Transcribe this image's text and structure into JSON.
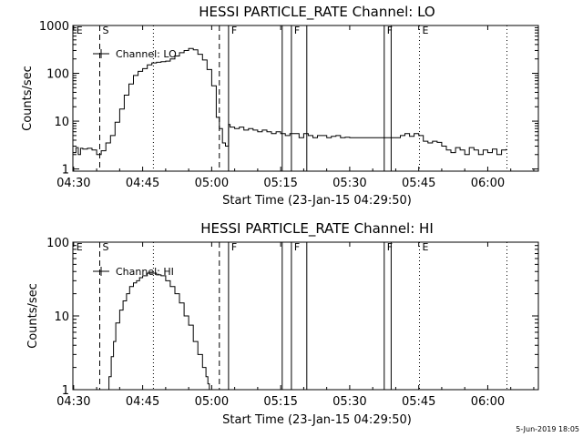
{
  "stamp": "5-Jun-2019 18:05",
  "chart_data": [
    {
      "type": "line",
      "title": "HESSI PARTICLE_RATE Channel: LO",
      "xlabel": "Start Time (23-Jan-15 04:29:50)",
      "ylabel": "Counts/sec",
      "yscale": "log",
      "xlim": [
        "04:29:50",
        "06:11:00"
      ],
      "ylim": [
        0.9,
        1000
      ],
      "xticks": [
        "04:30",
        "04:45",
        "05:00",
        "05:15",
        "05:30",
        "05:45",
        "06:00"
      ],
      "yticks": [
        "1",
        "10",
        "100",
        "1000"
      ],
      "grid": false,
      "legend": {
        "position": "top-left",
        "label": "Channel: LO"
      },
      "flags": [
        {
          "time": "04:30:00",
          "label": "E",
          "style": "none"
        },
        {
          "time": "04:35:40",
          "label": "S",
          "style": "dashed"
        },
        {
          "time": "05:03:40",
          "label": "F",
          "style": "solid"
        },
        {
          "time": "05:17:20",
          "label": "F",
          "style": "solid"
        },
        {
          "time": "05:37:30",
          "label": "F",
          "style": "solid"
        },
        {
          "time": "05:45:10",
          "label": "E",
          "style": "dotted"
        }
      ],
      "lines": [
        {
          "time": "04:35:40",
          "style": "dashed"
        },
        {
          "time": "04:47:20",
          "style": "dotted"
        },
        {
          "time": "05:01:40",
          "style": "dashed"
        },
        {
          "time": "05:03:40",
          "style": "solid"
        },
        {
          "time": "05:15:20",
          "style": "solid"
        },
        {
          "time": "05:17:20",
          "style": "solid"
        },
        {
          "time": "05:20:40",
          "style": "solid"
        },
        {
          "time": "05:37:30",
          "style": "solid"
        },
        {
          "time": "05:39:00",
          "style": "solid"
        },
        {
          "time": "05:45:10",
          "style": "dotted"
        },
        {
          "time": "06:04:10",
          "style": "dotted"
        }
      ],
      "series": [
        {
          "x": [
            "04:29:50",
            "04:30:30",
            "04:31:00",
            "04:31:30",
            "04:32:00",
            "04:33:00",
            "04:34:00",
            "04:35:00",
            "04:35:40",
            "04:36:00",
            "04:37:00",
            "04:38:00",
            "04:39:00",
            "04:40:00",
            "04:41:00",
            "04:42:00",
            "04:43:00",
            "04:44:00",
            "04:45:00",
            "04:46:00",
            "04:47:00",
            "04:48:00",
            "04:49:00",
            "04:50:00",
            "04:51:00",
            "04:52:00",
            "04:53:00",
            "04:54:00",
            "04:55:00",
            "04:56:00",
            "04:57:00",
            "04:58:00",
            "04:59:00",
            "05:00:00",
            "05:01:00",
            "05:01:40",
            "05:02:20",
            "05:03:00",
            "05:03:40",
            "05:04:00",
            "05:05:00",
            "05:06:00",
            "05:07:00",
            "05:08:00",
            "05:09:00",
            "05:10:00",
            "05:11:00",
            "05:12:00",
            "05:13:00",
            "05:14:00",
            "05:15:00",
            "05:16:00",
            "05:17:00",
            "05:18:00",
            "05:19:00",
            "05:20:00",
            "05:21:00",
            "05:22:00",
            "05:23:00",
            "05:24:00",
            "05:25:00",
            "05:26:00",
            "05:27:00",
            "05:28:00",
            "05:29:00",
            "05:30:00",
            "05:31:00",
            "05:32:00",
            "05:33:00",
            "05:34:00",
            "05:35:00",
            "05:36:00",
            "05:37:00",
            "05:38:00",
            "05:39:00",
            "05:40:00",
            "05:41:00",
            "05:42:00",
            "05:43:00",
            "05:44:00",
            "05:45:00",
            "05:46:00",
            "05:47:00",
            "05:48:00",
            "05:49:00",
            "05:50:00",
            "05:51:00",
            "05:52:00",
            "05:53:00",
            "05:54:00",
            "05:55:00",
            "05:56:00",
            "05:57:00",
            "05:58:00",
            "05:59:00",
            "06:00:00",
            "06:01:00",
            "06:02:00",
            "06:03:00",
            "06:04:00"
          ],
          "y": [
            2.2,
            2.8,
            2.0,
            2.7,
            2.6,
            2.7,
            2.5,
            2.0,
            2.0,
            2.4,
            3.5,
            5.0,
            9.5,
            18,
            35,
            60,
            90,
            110,
            125,
            150,
            165,
            170,
            175,
            180,
            200,
            230,
            270,
            300,
            330,
            310,
            250,
            190,
            120,
            55,
            12,
            7.0,
            3.5,
            3.0,
            8.5,
            7.5,
            7.0,
            7.5,
            6.5,
            7.0,
            6.5,
            6.0,
            6.5,
            6.0,
            5.5,
            6.0,
            5.5,
            5.0,
            5.5,
            5.5,
            4.5,
            5.5,
            5.0,
            4.5,
            5.0,
            5.0,
            4.5,
            4.8,
            5.0,
            4.5,
            4.6,
            4.5,
            4.5,
            4.5,
            4.5,
            4.5,
            4.5,
            4.5,
            4.5,
            4.5,
            4.5,
            4.5,
            5.0,
            5.5,
            4.8,
            5.5,
            5.0,
            3.8,
            3.5,
            3.8,
            3.6,
            3.0,
            2.5,
            2.2,
            2.8,
            2.5,
            2.0,
            2.8,
            2.5,
            2.0,
            2.5,
            2.2,
            2.6,
            2.0,
            2.5,
            2.6
          ]
        }
      ]
    },
    {
      "type": "line",
      "title": "HESSI PARTICLE_RATE Channel: HI",
      "xlabel": "Start Time (23-Jan-15 04:29:50)",
      "ylabel": "Counts/sec",
      "yscale": "log",
      "xlim": [
        "04:29:50",
        "06:11:00"
      ],
      "ylim": [
        1,
        100
      ],
      "xticks": [
        "04:30",
        "04:45",
        "05:00",
        "05:15",
        "05:30",
        "05:45",
        "06:00"
      ],
      "yticks": [
        "1",
        "10",
        "100"
      ],
      "grid": false,
      "legend": {
        "position": "top-left",
        "label": "Channel: HI"
      },
      "flags": [
        {
          "time": "04:30:00",
          "label": "E",
          "style": "none"
        },
        {
          "time": "04:35:40",
          "label": "S",
          "style": "dashed"
        },
        {
          "time": "05:03:40",
          "label": "F",
          "style": "solid"
        },
        {
          "time": "05:17:20",
          "label": "F",
          "style": "solid"
        },
        {
          "time": "05:37:30",
          "label": "F",
          "style": "solid"
        },
        {
          "time": "05:45:10",
          "label": "E",
          "style": "dotted"
        }
      ],
      "lines": [
        {
          "time": "04:35:40",
          "style": "dashed"
        },
        {
          "time": "04:47:20",
          "style": "dotted"
        },
        {
          "time": "05:01:40",
          "style": "dashed"
        },
        {
          "time": "05:03:40",
          "style": "solid"
        },
        {
          "time": "05:15:20",
          "style": "solid"
        },
        {
          "time": "05:17:20",
          "style": "solid"
        },
        {
          "time": "05:20:40",
          "style": "solid"
        },
        {
          "time": "05:37:30",
          "style": "solid"
        },
        {
          "time": "05:39:00",
          "style": "solid"
        },
        {
          "time": "05:45:10",
          "style": "dotted"
        },
        {
          "time": "06:04:10",
          "style": "dotted"
        }
      ],
      "series": [
        {
          "x": [
            "04:37:15",
            "04:37:40",
            "04:38:10",
            "04:38:40",
            "04:39:10",
            "04:40:00",
            "04:40:45",
            "04:41:30",
            "04:42:10",
            "04:43:00",
            "04:43:40",
            "04:44:20",
            "04:45:00",
            "04:46:00",
            "04:47:00",
            "04:48:00",
            "04:49:00",
            "04:50:00",
            "04:51:00",
            "04:52:00",
            "04:53:00",
            "04:54:00",
            "04:55:00",
            "04:56:00",
            "04:57:00",
            "04:58:00",
            "04:58:45",
            "04:59:10",
            "04:59:30"
          ],
          "y": [
            1.0,
            1.5,
            2.8,
            4.5,
            8.0,
            12,
            16,
            20,
            25,
            28,
            30,
            33,
            35,
            38,
            38,
            36,
            35,
            30,
            25,
            20,
            15,
            10,
            7.5,
            4.5,
            3.0,
            2.0,
            1.5,
            1.2,
            1.0
          ]
        }
      ]
    }
  ]
}
